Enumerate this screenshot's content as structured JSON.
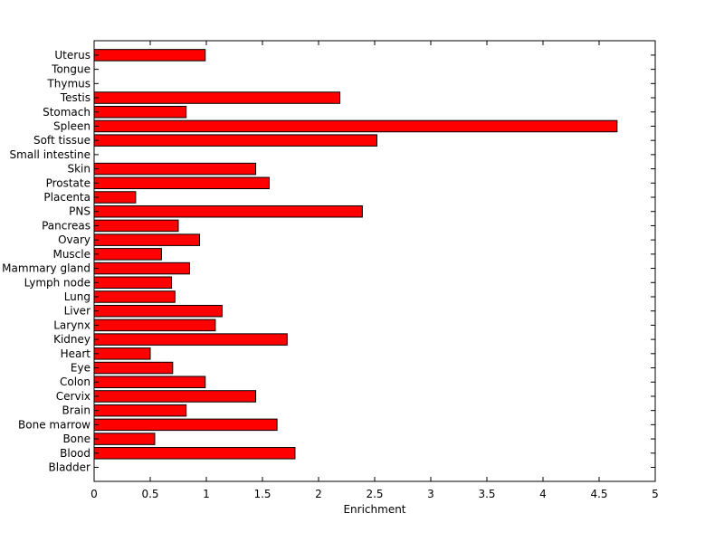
{
  "chart_data": {
    "type": "bar",
    "orientation": "horizontal",
    "title": "",
    "xlabel": "Enrichment",
    "ylabel": "",
    "xlim": [
      0,
      5
    ],
    "xticks": [
      "0",
      "0.5",
      "1",
      "1.5",
      "2",
      "2.5",
      "3",
      "3.5",
      "4",
      "4.5",
      "5"
    ],
    "grid": false,
    "bar_color": "#ff0000",
    "bar_edge_color": "#000000",
    "categories": [
      "Bladder",
      "Blood",
      "Bone",
      "Bone marrow",
      "Brain",
      "Cervix",
      "Colon",
      "Eye",
      "Heart",
      "Kidney",
      "Larynx",
      "Liver",
      "Lung",
      "Lymph node",
      "Mammary gland",
      "Muscle",
      "Ovary",
      "Pancreas",
      "PNS",
      "Placenta",
      "Prostate",
      "Skin",
      "Small intestine",
      "Soft tissue",
      "Spleen",
      "Stomach",
      "Testis",
      "Thymus",
      "Tongue",
      "Uterus"
    ],
    "values": [
      0,
      1.79,
      0.54,
      1.63,
      0.82,
      1.44,
      0.99,
      0.7,
      0.5,
      1.72,
      1.08,
      1.14,
      0.72,
      0.69,
      0.85,
      0.6,
      0.94,
      0.75,
      2.39,
      0.37,
      1.56,
      1.44,
      0,
      2.52,
      4.66,
      0.82,
      2.19,
      0,
      0,
      0.99
    ]
  }
}
